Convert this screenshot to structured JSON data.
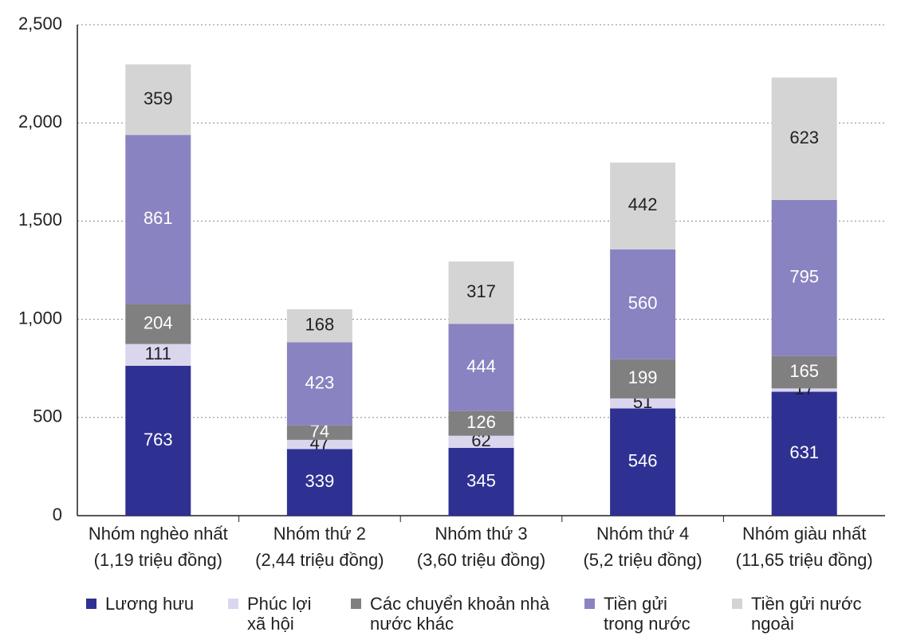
{
  "chart_data": {
    "type": "stacked_bar",
    "categories": [
      [
        "Nhóm nghèo nhất",
        "(1,19 triệu đồng)"
      ],
      [
        "Nhóm thứ 2",
        "(2,44 triệu đồng)"
      ],
      [
        "Nhóm thứ 3",
        "(3,60 triệu đồng)"
      ],
      [
        "Nhóm thứ 4",
        "(5,2 triệu đồng)"
      ],
      [
        "Nhóm giàu nhất",
        "(11,65 triệu đồng)"
      ]
    ],
    "series": [
      {
        "name": "Lương hưu",
        "color": "#2e3192",
        "label_color": "#ffffff",
        "values": [
          763,
          339,
          345,
          546,
          631
        ]
      },
      {
        "name": "Phúc lợi xã hội",
        "color": "#d9d6ee",
        "label_color": "#231f20",
        "values": [
          111,
          47,
          62,
          51,
          17
        ]
      },
      {
        "name": "Các chuyển khoản nhà nước khác",
        "color": "#808080",
        "label_color": "#ffffff",
        "values": [
          204,
          74,
          126,
          199,
          165
        ]
      },
      {
        "name": "Tiền gửi trong nước",
        "color": "#8983c1",
        "label_color": "#ffffff",
        "values": [
          861,
          423,
          444,
          560,
          795
        ]
      },
      {
        "name": "Tiền gửi nước ngoài",
        "color": "#d4d4d4",
        "label_color": "#231f20",
        "values": [
          359,
          168,
          317,
          442,
          623
        ]
      }
    ],
    "ylim": [
      0,
      2500
    ],
    "yticks": [
      0,
      {
        "value": 500,
        "label": "500"
      },
      {
        "value": 1000,
        "label": "1,000"
      },
      {
        "value": 1500,
        "label": "1,500"
      },
      {
        "value": 2000,
        "label": "2,000"
      },
      {
        "value": 2500,
        "label": "2,500"
      }
    ],
    "grid": true
  }
}
